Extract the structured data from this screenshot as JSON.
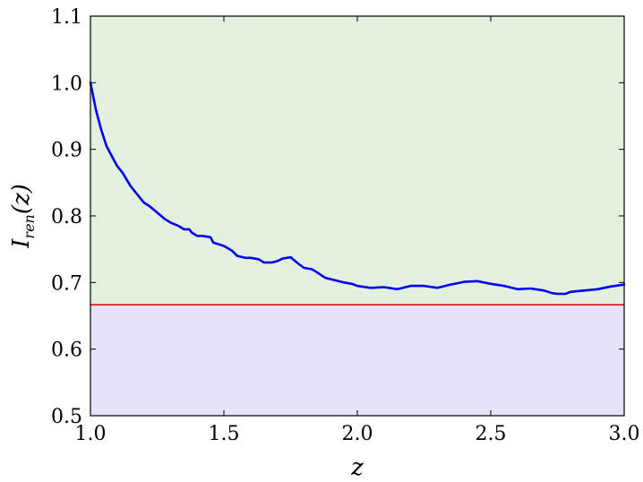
{
  "chart_data": {
    "type": "line",
    "title": "",
    "xlabel": "z",
    "ylabel_main": "I",
    "ylabel_sub": "ren",
    "ylabel_arg": "(z)",
    "xlim": [
      1.0,
      3.0
    ],
    "ylim": [
      0.5,
      1.1
    ],
    "xticks": [
      "1.0",
      "1.5",
      "2.0",
      "2.5",
      "3.0"
    ],
    "yticks": [
      "0.5",
      "0.6",
      "0.7",
      "0.8",
      "0.9",
      "1.0",
      "1.1"
    ],
    "threshold": 0.6667,
    "grid": false,
    "colors": {
      "series": "#0000ee",
      "threshold": "#dd0000",
      "region_above": "#e3f0e0",
      "region_below": "#e3e4fb"
    },
    "series": [
      {
        "x": [
          1.0,
          1.02,
          1.04,
          1.06,
          1.08,
          1.1,
          1.12,
          1.15,
          1.18,
          1.2,
          1.22,
          1.25,
          1.28,
          1.3,
          1.33,
          1.35,
          1.37,
          1.38,
          1.4,
          1.42,
          1.45,
          1.46,
          1.5,
          1.53,
          1.55,
          1.58,
          1.6,
          1.63,
          1.65,
          1.68,
          1.7,
          1.72,
          1.75,
          1.78,
          1.8,
          1.83,
          1.85,
          1.88,
          1.9,
          1.93,
          1.95,
          1.98,
          2.0,
          2.05,
          2.1,
          2.15,
          2.2,
          2.25,
          2.3,
          2.35,
          2.4,
          2.45,
          2.5,
          2.55,
          2.6,
          2.65,
          2.7,
          2.73,
          2.75,
          2.78,
          2.8,
          2.85,
          2.9,
          2.95,
          3.0
        ],
        "y": [
          1.0,
          0.96,
          0.93,
          0.905,
          0.89,
          0.875,
          0.865,
          0.845,
          0.83,
          0.82,
          0.815,
          0.805,
          0.795,
          0.79,
          0.785,
          0.78,
          0.78,
          0.775,
          0.77,
          0.77,
          0.768,
          0.76,
          0.755,
          0.748,
          0.74,
          0.737,
          0.737,
          0.735,
          0.73,
          0.73,
          0.732,
          0.736,
          0.738,
          0.728,
          0.722,
          0.72,
          0.715,
          0.707,
          0.705,
          0.702,
          0.7,
          0.698,
          0.695,
          0.692,
          0.693,
          0.69,
          0.695,
          0.695,
          0.692,
          0.697,
          0.701,
          0.702,
          0.698,
          0.695,
          0.69,
          0.691,
          0.688,
          0.684,
          0.683,
          0.683,
          0.686,
          0.688,
          0.69,
          0.694,
          0.697
        ]
      }
    ]
  }
}
